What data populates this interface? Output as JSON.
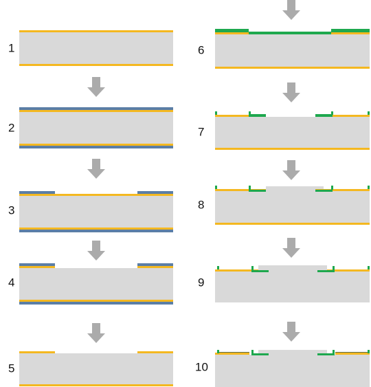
{
  "steps": [
    {
      "label": "1"
    },
    {
      "label": "2"
    },
    {
      "label": "3"
    },
    {
      "label": "4"
    },
    {
      "label": "5"
    },
    {
      "label": "6"
    },
    {
      "label": "7"
    },
    {
      "label": "8"
    },
    {
      "label": "9"
    },
    {
      "label": "10"
    }
  ]
}
